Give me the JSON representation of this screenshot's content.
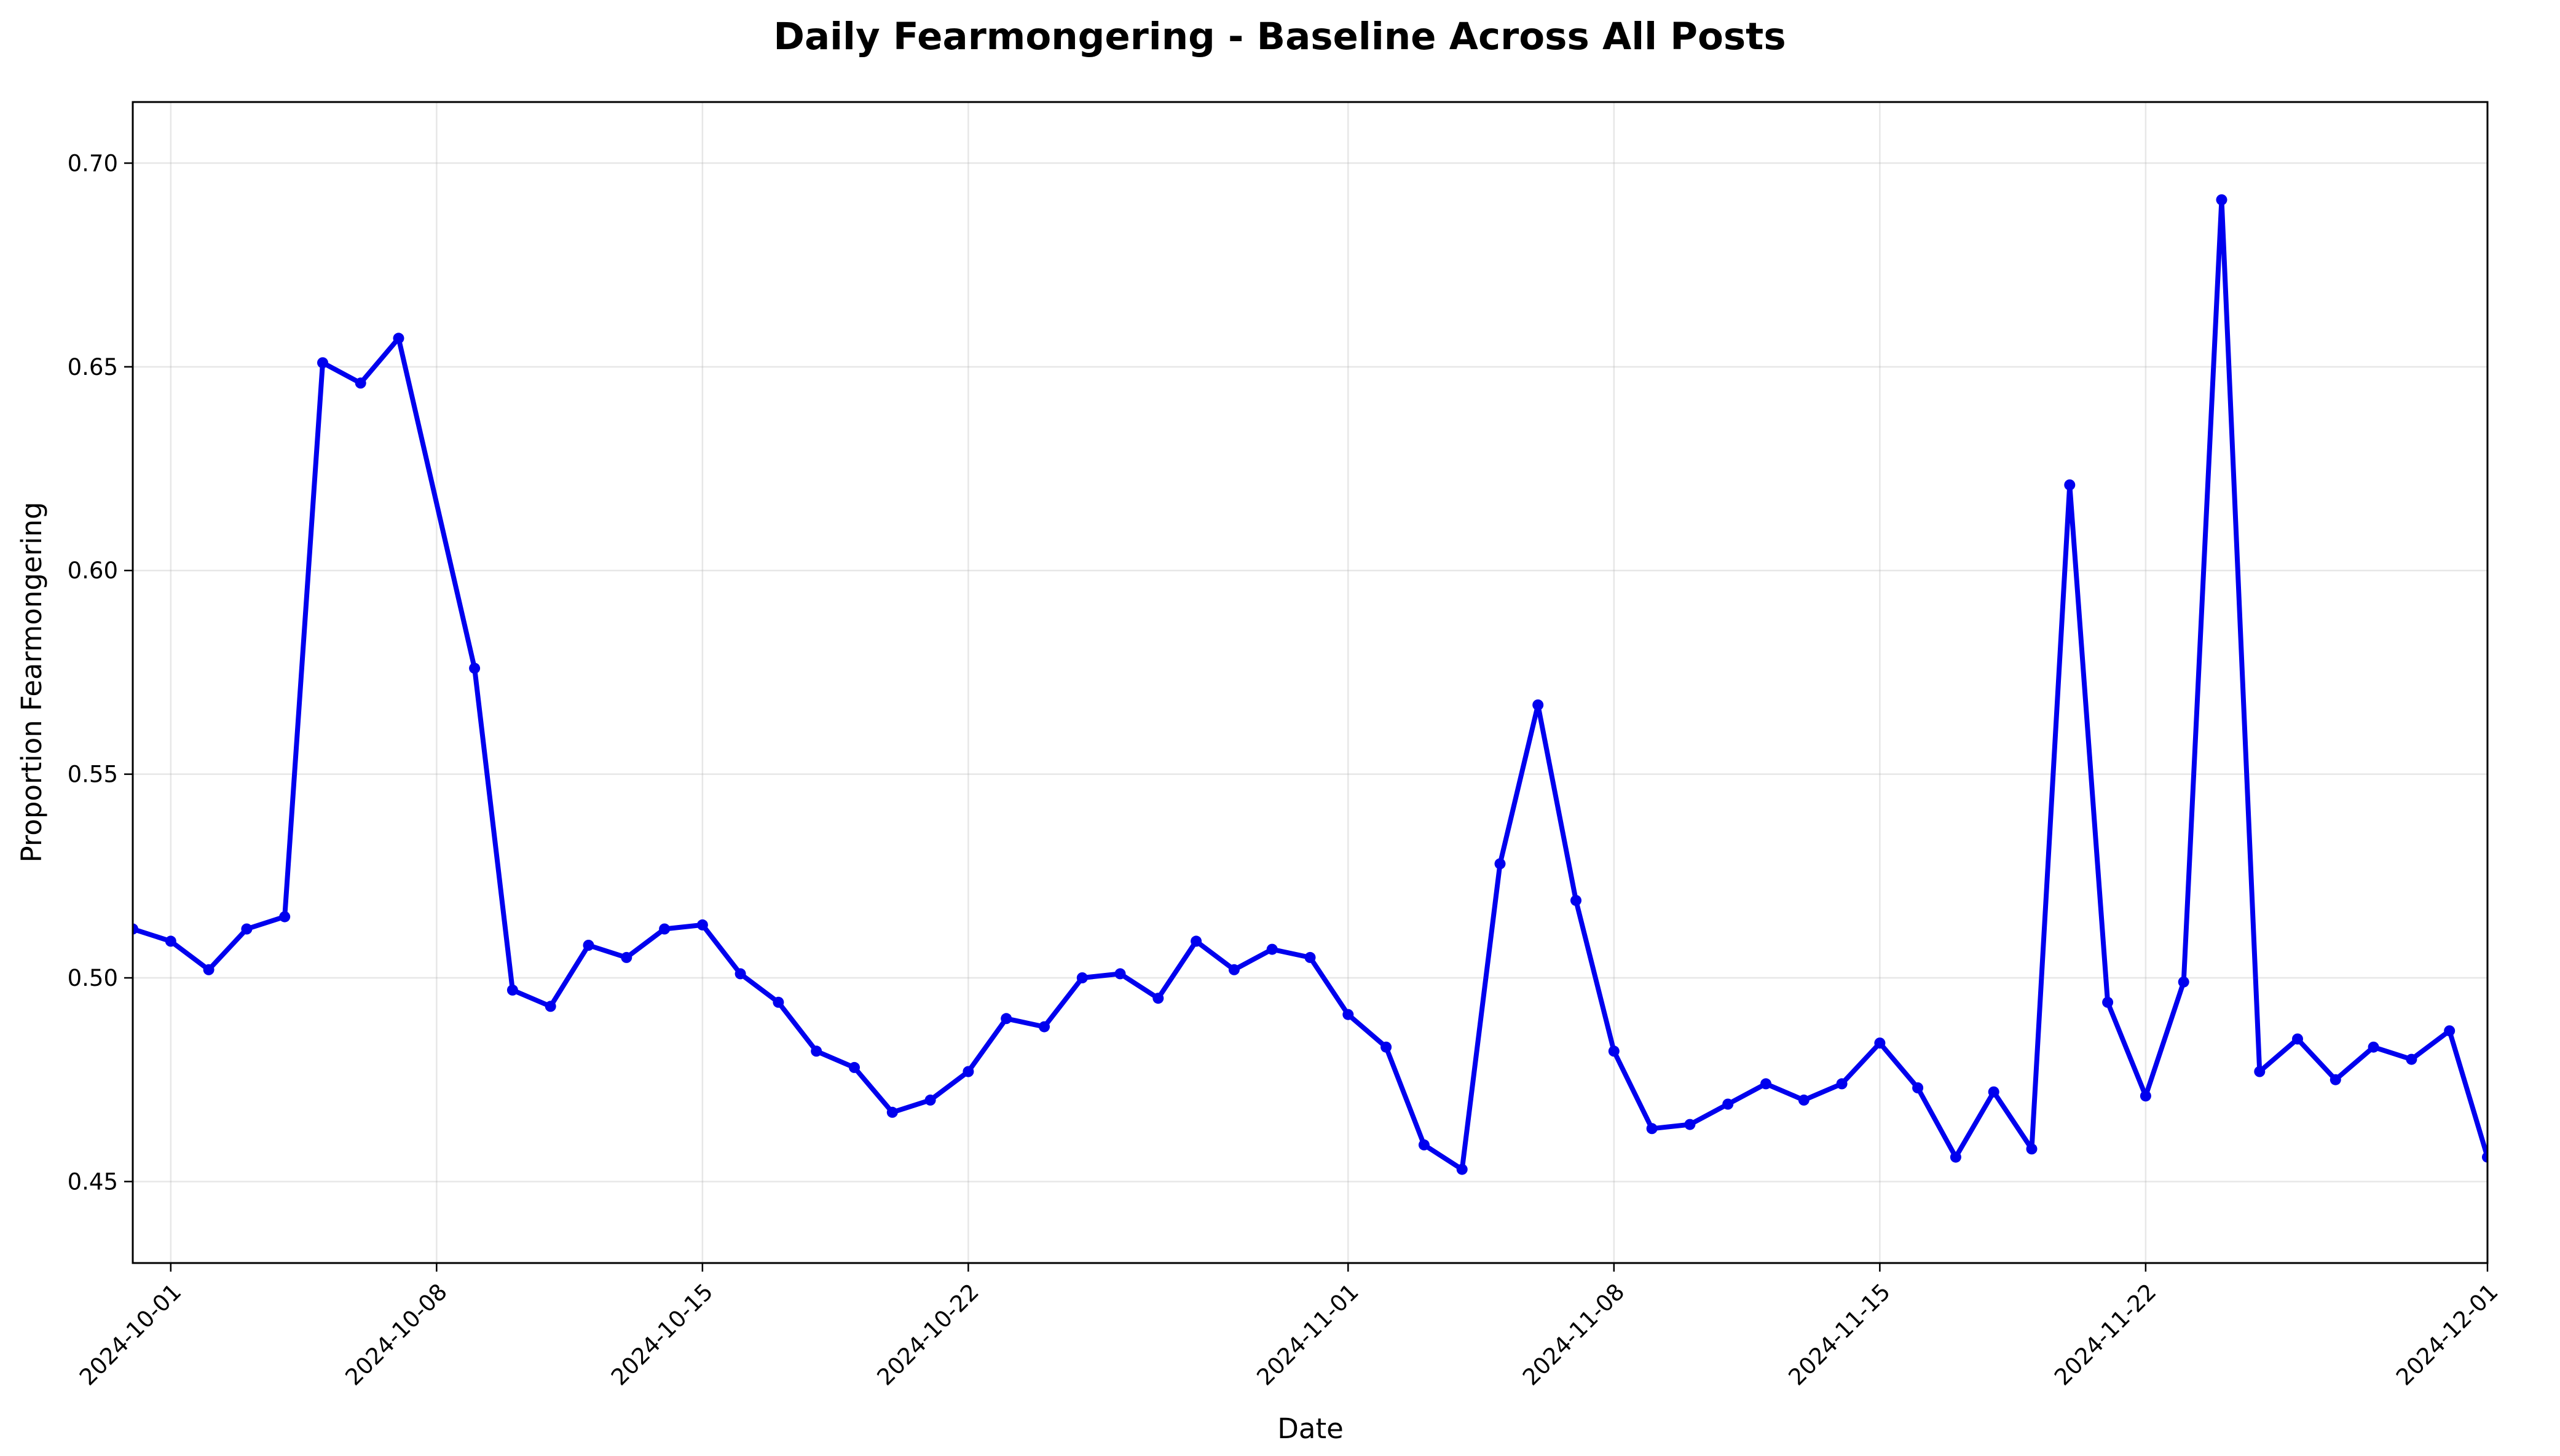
{
  "chart_data": {
    "type": "line",
    "title": "Daily Fearmongering - Baseline Across All Posts",
    "xlabel": "Date",
    "ylabel": "Proportion Fearmongering",
    "xlim": [
      "2024-09-30",
      "2024-12-01"
    ],
    "ylim": [
      0.43,
      0.715
    ],
    "grid": true,
    "color": "#0000ee",
    "x_ticks": [
      "2024-10-01",
      "2024-10-08",
      "2024-10-15",
      "2024-10-22",
      "2024-11-01",
      "2024-11-08",
      "2024-11-15",
      "2024-11-22",
      "2024-12-01"
    ],
    "y_ticks": [
      "0.45",
      "0.50",
      "0.55",
      "0.60",
      "0.65",
      "0.70"
    ],
    "series": [
      {
        "x": [
          "2024-09-30",
          "2024-10-01",
          "2024-10-02",
          "2024-10-03",
          "2024-10-04",
          "2024-10-05",
          "2024-10-06",
          "2024-10-07",
          "2024-10-09",
          "2024-10-10",
          "2024-10-11",
          "2024-10-12",
          "2024-10-13",
          "2024-10-14",
          "2024-10-15",
          "2024-10-16",
          "2024-10-17",
          "2024-10-18",
          "2024-10-19",
          "2024-10-20",
          "2024-10-21",
          "2024-10-22",
          "2024-10-23",
          "2024-10-24",
          "2024-10-25",
          "2024-10-26",
          "2024-10-27",
          "2024-10-28",
          "2024-10-29",
          "2024-10-30",
          "2024-10-31",
          "2024-11-01",
          "2024-11-02",
          "2024-11-03",
          "2024-11-04",
          "2024-11-05",
          "2024-11-06",
          "2024-11-07",
          "2024-11-08",
          "2024-11-09",
          "2024-11-10",
          "2024-11-11",
          "2024-11-12",
          "2024-11-13",
          "2024-11-14",
          "2024-11-15",
          "2024-11-16",
          "2024-11-17",
          "2024-11-18",
          "2024-11-19",
          "2024-11-20",
          "2024-11-21",
          "2024-11-22",
          "2024-11-23",
          "2024-11-24",
          "2024-11-25",
          "2024-11-26",
          "2024-11-27",
          "2024-11-28",
          "2024-11-29",
          "2024-11-30",
          "2024-12-01"
        ],
        "y": [
          0.512,
          0.509,
          0.502,
          0.512,
          0.515,
          0.651,
          0.646,
          0.657,
          0.576,
          0.497,
          0.493,
          0.508,
          0.505,
          0.512,
          0.513,
          0.501,
          0.494,
          0.482,
          0.478,
          0.467,
          0.47,
          0.477,
          0.49,
          0.488,
          0.5,
          0.501,
          0.495,
          0.509,
          0.502,
          0.507,
          0.505,
          0.491,
          0.483,
          0.459,
          0.453,
          0.528,
          0.567,
          0.519,
          0.482,
          0.463,
          0.464,
          0.469,
          0.474,
          0.47,
          0.474,
          0.484,
          0.473,
          0.456,
          0.472,
          0.458,
          0.621,
          0.494,
          0.471,
          0.499,
          0.691,
          0.477,
          0.485,
          0.475,
          0.483,
          0.48,
          0.487,
          0.456
        ]
      }
    ]
  }
}
